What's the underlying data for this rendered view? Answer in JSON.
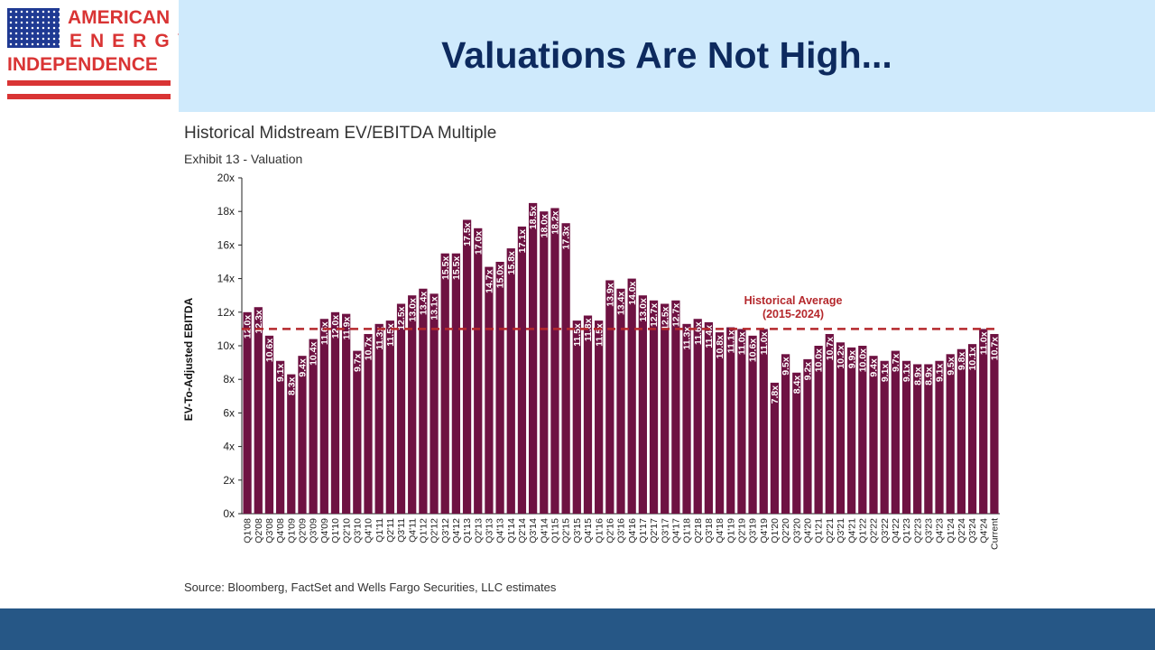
{
  "logo": {
    "line1": "AMERICAN",
    "line2": "ENERGY",
    "line3": "INDEPENDENCE"
  },
  "slide": {
    "title": "Valuations Are Not High..."
  },
  "colors": {
    "bar": "#6e1242",
    "average_line": "#b5282c",
    "title_band": "#cfeafc",
    "footer_band": "#265786",
    "logo_red": "#d93434",
    "logo_blue": "#1f3a93"
  },
  "chart_data": {
    "type": "bar",
    "title": "Historical Midstream EV/EBITDA Multiple",
    "subtitle": "Exhibit 13 - Valuation",
    "ylabel": "EV-To-Adjusted EBITDA",
    "xlabel": "",
    "ylim": [
      0,
      20
    ],
    "yticks": [
      "0x",
      "2x",
      "4x",
      "6x",
      "8x",
      "10x",
      "12x",
      "14x",
      "16x",
      "18x",
      "20x"
    ],
    "grid": false,
    "categories": [
      "Q1'08",
      "Q2'08",
      "Q3'08",
      "Q4'08",
      "Q1'09",
      "Q2'09",
      "Q3'09",
      "Q4'09",
      "Q1'10",
      "Q2'10",
      "Q3'10",
      "Q4'10",
      "Q1'11",
      "Q2'11",
      "Q3'11",
      "Q4'11",
      "Q1'12",
      "Q2'12",
      "Q3'12",
      "Q4'12",
      "Q1'13",
      "Q2'13",
      "Q3'13",
      "Q4'13",
      "Q1'14",
      "Q2'14",
      "Q3'14",
      "Q4'14",
      "Q1'15",
      "Q2'15",
      "Q3'15",
      "Q4'15",
      "Q1'16",
      "Q2'16",
      "Q3'16",
      "Q4'16",
      "Q1'17",
      "Q2'17",
      "Q3'17",
      "Q4'17",
      "Q1'18",
      "Q2'18",
      "Q3'18",
      "Q4'18",
      "Q1'19",
      "Q2'19",
      "Q3'19",
      "Q4'19",
      "Q1'20",
      "Q2'20",
      "Q3'20",
      "Q4'20",
      "Q1'21",
      "Q2'21",
      "Q3'21",
      "Q4'21",
      "Q1'22",
      "Q2'22",
      "Q3'22",
      "Q4'22",
      "Q1'23",
      "Q2'23",
      "Q3'23",
      "Q4'23",
      "Q1'24",
      "Q2'24",
      "Q3'24",
      "Q4'24",
      "Current"
    ],
    "values": [
      12.0,
      12.3,
      10.6,
      9.1,
      8.3,
      9.4,
      10.4,
      11.6,
      12.0,
      11.9,
      9.7,
      10.7,
      11.3,
      11.5,
      12.5,
      13.0,
      13.4,
      13.1,
      15.5,
      15.5,
      17.5,
      17.0,
      14.7,
      15.0,
      15.8,
      17.1,
      18.5,
      18.0,
      18.2,
      17.3,
      11.5,
      11.8,
      11.5,
      13.9,
      13.4,
      14.0,
      13.0,
      12.7,
      12.5,
      12.7,
      11.3,
      11.6,
      11.4,
      10.8,
      11.1,
      11.0,
      10.6,
      11.0,
      7.8,
      9.5,
      8.4,
      9.2,
      10.0,
      10.7,
      10.2,
      9.9,
      10.0,
      9.4,
      9.1,
      9.7,
      9.1,
      8.9,
      8.9,
      9.1,
      9.5,
      9.8,
      10.1,
      11.0,
      10.7
    ],
    "labels": [
      "12.0x",
      "12.3x",
      "10.6x",
      "9.1x",
      "8.3x",
      "9.4x",
      "10.4x",
      "11.6x",
      "12.0x",
      "11.9x",
      "9.7x",
      "10.7x",
      "11.3x",
      "11.5x",
      "12.5x",
      "13.0x",
      "13.4x",
      "13.1x",
      "15.5x",
      "15.5x",
      "17.5x",
      "17.0x",
      "14.7x",
      "15.0x",
      "15.8x",
      "17.1x",
      "18.5x",
      "18.0x",
      "18.2x",
      "17.3x",
      "11.5x",
      "11.8x",
      "11.5x",
      "13.9x",
      "13.4x",
      "14.0x",
      "13.0x",
      "12.7x",
      "12.5x",
      "12.7x",
      "11.3x",
      "11.6x",
      "11.4x",
      "10.8x",
      "11.1x",
      "11.0x",
      "10.6x",
      "11.0x",
      "7.8x",
      "9.5x",
      "8.4x",
      "9.2x",
      "10.0x",
      "10.7x",
      "10.2x",
      "9.9x",
      "10.0x",
      "9.4x",
      "9.1x",
      "9.7x",
      "9.1x",
      "8.9x",
      "8.9x",
      "9.1x",
      "9.5x",
      "9.8x",
      "10.1x",
      "11.0x",
      "10.7x"
    ],
    "average": {
      "value": 11.0,
      "label_line1": "Historical Average",
      "label_line2": "(2015-2024)"
    }
  },
  "source": "Source: Bloomberg, FactSet and Wells Fargo Securities, LLC estimates"
}
